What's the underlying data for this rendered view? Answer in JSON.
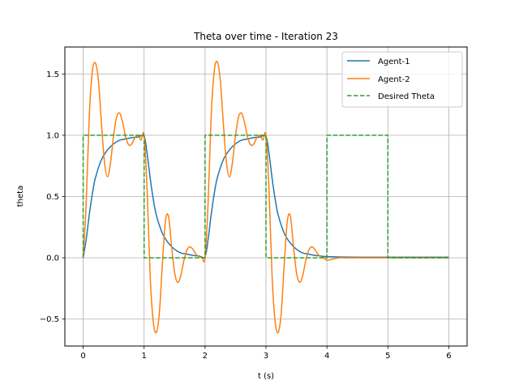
{
  "chart_data": {
    "type": "line",
    "title": "Theta over time - Iteration 23",
    "xlabel": "t (s)",
    "ylabel": "theta",
    "xlim": [
      -0.3,
      6.3
    ],
    "ylim": [
      -0.72,
      1.72
    ],
    "xticks": [
      0,
      1,
      2,
      3,
      4,
      5,
      6
    ],
    "xtick_labels": [
      "0",
      "1",
      "2",
      "3",
      "4",
      "5",
      "6"
    ],
    "yticks": [
      -0.5,
      0.0,
      0.5,
      1.0,
      1.5
    ],
    "ytick_labels": [
      "−0.5",
      "0.0",
      "0.5",
      "1.0",
      "1.5"
    ],
    "grid": true,
    "legend_position": "top-right",
    "series": [
      {
        "name": "Agent-1",
        "color": "#1f77b4",
        "style": "solid",
        "x": [
          0.0,
          0.05,
          0.1,
          0.15,
          0.2,
          0.3,
          0.4,
          0.5,
          0.6,
          0.7,
          0.8,
          0.9,
          1.0,
          1.05,
          1.1,
          1.15,
          1.2,
          1.3,
          1.4,
          1.5,
          1.6,
          1.7,
          1.8,
          1.9,
          2.0,
          2.05,
          2.1,
          2.15,
          2.2,
          2.3,
          2.4,
          2.5,
          2.6,
          2.7,
          2.8,
          2.9,
          3.0,
          3.05,
          3.1,
          3.15,
          3.2,
          3.3,
          3.4,
          3.5,
          3.6,
          3.7,
          3.8,
          3.9,
          4.0,
          4.5,
          5.0,
          5.5,
          6.0
        ],
        "y": [
          0.0,
          0.15,
          0.35,
          0.52,
          0.65,
          0.8,
          0.88,
          0.93,
          0.96,
          0.97,
          0.98,
          0.985,
          0.99,
          0.85,
          0.65,
          0.48,
          0.35,
          0.2,
          0.12,
          0.07,
          0.04,
          0.03,
          0.02,
          0.015,
          0.01,
          0.15,
          0.35,
          0.52,
          0.65,
          0.8,
          0.88,
          0.93,
          0.96,
          0.97,
          0.98,
          0.985,
          0.99,
          0.85,
          0.65,
          0.48,
          0.35,
          0.2,
          0.12,
          0.07,
          0.04,
          0.03,
          0.02,
          0.015,
          0.01,
          0.005,
          0.005,
          0.005,
          0.005
        ]
      },
      {
        "name": "Agent-2",
        "color": "#ff7f0e",
        "style": "solid",
        "x": [
          0.0,
          0.05,
          0.1,
          0.15,
          0.2,
          0.25,
          0.3,
          0.35,
          0.4,
          0.45,
          0.5,
          0.55,
          0.6,
          0.65,
          0.7,
          0.75,
          0.8,
          0.85,
          0.9,
          0.95,
          1.0,
          1.05,
          1.1,
          1.15,
          1.2,
          1.25,
          1.3,
          1.35,
          1.4,
          1.45,
          1.5,
          1.55,
          1.6,
          1.65,
          1.7,
          1.75,
          1.8,
          1.85,
          1.9,
          1.95,
          2.0,
          2.05,
          2.1,
          2.15,
          2.2,
          2.25,
          2.3,
          2.35,
          2.4,
          2.45,
          2.5,
          2.55,
          2.6,
          2.65,
          2.7,
          2.75,
          2.8,
          2.85,
          2.9,
          2.95,
          3.0,
          3.05,
          3.1,
          3.15,
          3.2,
          3.25,
          3.3,
          3.35,
          3.4,
          3.45,
          3.5,
          3.55,
          3.6,
          3.65,
          3.7,
          3.75,
          3.8,
          3.85,
          3.9,
          3.95,
          4.0,
          4.1,
          4.2,
          4.3,
          4.5,
          5.0,
          5.5,
          6.0
        ],
        "y": [
          0.0,
          0.45,
          1.15,
          1.52,
          1.59,
          1.45,
          1.1,
          0.78,
          0.66,
          0.78,
          1.0,
          1.15,
          1.18,
          1.1,
          0.98,
          0.92,
          0.93,
          0.98,
          1.0,
          0.96,
          1.0,
          0.55,
          -0.15,
          -0.52,
          -0.61,
          -0.45,
          -0.05,
          0.3,
          0.34,
          0.1,
          -0.12,
          -0.2,
          -0.15,
          -0.03,
          0.06,
          0.09,
          0.07,
          0.03,
          0.01,
          0.0,
          0.0,
          0.45,
          1.15,
          1.52,
          1.6,
          1.45,
          1.1,
          0.78,
          0.66,
          0.78,
          1.0,
          1.15,
          1.18,
          1.1,
          0.98,
          0.92,
          0.93,
          0.98,
          1.0,
          0.96,
          1.0,
          0.55,
          -0.15,
          -0.52,
          -0.61,
          -0.45,
          -0.05,
          0.3,
          0.34,
          0.1,
          -0.12,
          -0.2,
          -0.15,
          -0.03,
          0.06,
          0.09,
          0.07,
          0.03,
          0.01,
          0.0,
          -0.02,
          -0.01,
          0.0,
          0.0,
          0.0,
          0.0,
          0.0,
          0.0
        ]
      },
      {
        "name": "Desired Theta",
        "color": "#2ca02c",
        "style": "dashed",
        "x": [
          0,
          0,
          1,
          1,
          2,
          2,
          3,
          3,
          4,
          4,
          5,
          5,
          6
        ],
        "y": [
          0,
          1,
          1,
          0,
          0,
          1,
          1,
          0,
          0,
          1,
          1,
          0,
          0
        ]
      }
    ]
  }
}
